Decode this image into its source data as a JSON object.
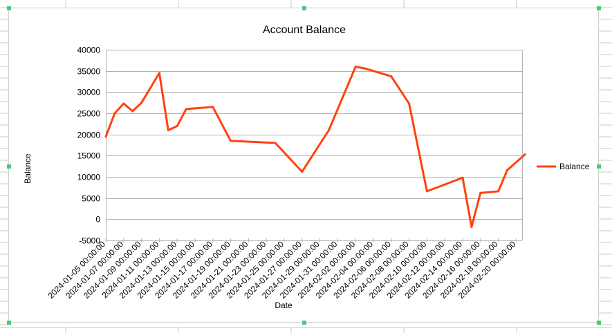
{
  "chart_data": {
    "type": "line",
    "title": "Account Balance",
    "xlabel": "Date",
    "ylabel": "Balance",
    "ylim": [
      -5000,
      40000
    ],
    "y_ticks": [
      -5000,
      0,
      5000,
      10000,
      15000,
      20000,
      25000,
      30000,
      35000,
      40000
    ],
    "x_tick_labels": [
      "2024-01-05 00:00:00",
      "2024-01-07 00:00:00",
      "2024-01-09 00:00:00",
      "2024-01-11 00:00:00",
      "2024-01-13 00:00:00",
      "2024-01-15 00:00:00",
      "2024-01-17 00:00:00",
      "2024-01-19 00:00:00",
      "2024-01-21 00:00:00",
      "2024-01-23 00:00:00",
      "2024-01-25 00:00:00",
      "2024-01-27 00:00:00",
      "2024-01-29 00:00:00",
      "2024-01-31 00:00:00",
      "2024-02-02 00:00:00",
      "2024-02-04 00:00:00",
      "2024-02-06 00:00:00",
      "2024-02-08 00:00:00",
      "2024-02-10 00:00:00",
      "2024-02-12 00:00:00",
      "2024-02-14 00:00:00",
      "2024-02-16 00:00:00",
      "2024-02-18 00:00:00",
      "2024-02-20 00:00:00"
    ],
    "grid": true,
    "legend": "right",
    "series": [
      {
        "name": "Balance",
        "color": "#ff420e",
        "x": [
          "2024-01-05",
          "2024-01-06",
          "2024-01-07",
          "2024-01-08",
          "2024-01-09",
          "2024-01-11",
          "2024-01-12",
          "2024-01-13",
          "2024-01-14",
          "2024-01-17",
          "2024-01-19",
          "2024-01-24",
          "2024-01-27",
          "2024-01-30",
          "2024-02-02",
          "2024-02-03",
          "2024-02-04",
          "2024-02-06",
          "2024-02-08",
          "2024-02-10",
          "2024-02-14",
          "2024-02-15",
          "2024-02-16",
          "2024-02-18",
          "2024-02-19",
          "2024-02-21"
        ],
        "values": [
          19500,
          25000,
          27300,
          25500,
          27500,
          34500,
          21000,
          22000,
          26000,
          26500,
          18500,
          18000,
          11200,
          21000,
          36000,
          35600,
          35000,
          33700,
          27300,
          6600,
          9800,
          -1800,
          6200,
          6600,
          11600,
          15300
        ]
      }
    ]
  }
}
